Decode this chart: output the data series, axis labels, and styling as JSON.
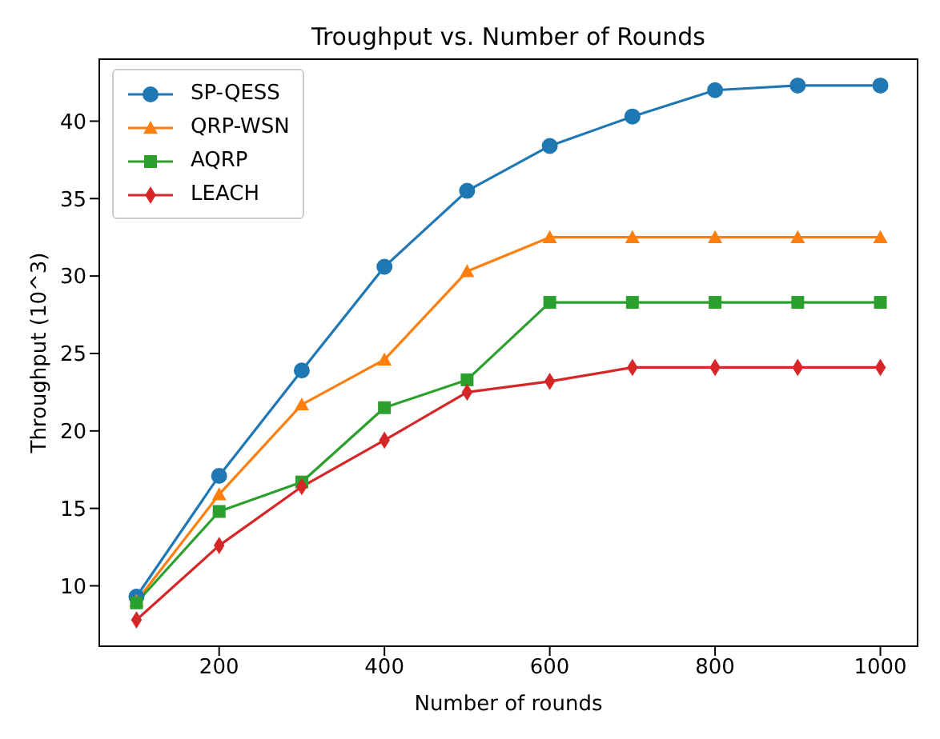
{
  "chart_data": {
    "type": "line",
    "title": "Troughput vs. Number of Rounds",
    "xlabel": "Number of rounds",
    "ylabel": "Throughput (10^3)",
    "x": [
      100,
      200,
      300,
      400,
      500,
      600,
      700,
      800,
      900,
      1000
    ],
    "series": [
      {
        "name": "SP-QESS",
        "color": "#1f77b4",
        "marker": "circle",
        "values": [
          9.3,
          17.1,
          23.9,
          30.6,
          35.5,
          38.4,
          40.3,
          42.0,
          42.3,
          42.3
        ]
      },
      {
        "name": "QRP-WSN",
        "color": "#ff7f0e",
        "marker": "triangle",
        "values": [
          9.0,
          15.9,
          21.7,
          24.6,
          30.3,
          32.5,
          32.5,
          32.5,
          32.5,
          32.5
        ]
      },
      {
        "name": "AQRP",
        "color": "#2ca02c",
        "marker": "square",
        "values": [
          8.9,
          14.8,
          16.7,
          21.5,
          23.3,
          28.3,
          28.3,
          28.3,
          28.3,
          28.3
        ]
      },
      {
        "name": "LEACH",
        "color": "#d62728",
        "marker": "diamond",
        "values": [
          7.8,
          12.6,
          16.4,
          19.4,
          22.5,
          23.2,
          24.1,
          24.1,
          24.1,
          24.1
        ]
      }
    ],
    "xlim": [
      55,
      1045
    ],
    "xticks": [
      200,
      400,
      600,
      800,
      1000
    ],
    "ylim": [
      6.1,
      44.0
    ],
    "yticks": [
      10,
      15,
      20,
      25,
      30,
      35,
      40
    ],
    "grid": false,
    "legend": "top left",
    "line_style": "solid"
  }
}
